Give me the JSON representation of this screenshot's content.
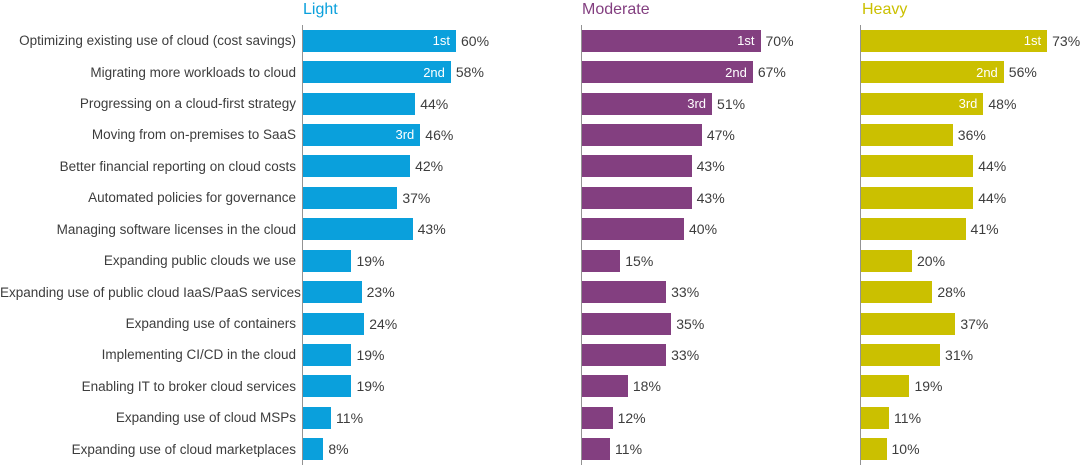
{
  "chart_data": {
    "type": "bar",
    "orientation": "horizontal",
    "title": "",
    "xlabel": "",
    "ylabel": "",
    "value_suffix": "%",
    "xlim": [
      0,
      80
    ],
    "grid": false,
    "legend_position": "column-headers-top",
    "axis_color": "#939393",
    "text_color": "#3d3d3d",
    "categories": [
      "Optimizing existing use of cloud (cost savings)",
      "Migrating more workloads to cloud",
      "Progressing on a cloud-first strategy",
      "Moving from on-premises to SaaS",
      "Better financial reporting on cloud costs",
      "Automated policies for governance",
      "Managing software licenses in the cloud",
      "Expanding public clouds we use",
      "Expanding use of public cloud IaaS/PaaS services",
      "Expanding use of containers",
      "Implementing CI/CD in the cloud",
      "Enabling IT to broker cloud services",
      "Expanding use of cloud MSPs",
      "Expanding use of cloud marketplaces"
    ],
    "series": [
      {
        "name": "Light",
        "color": "#0aa0dc",
        "values": [
          60,
          58,
          44,
          46,
          42,
          37,
          43,
          19,
          23,
          24,
          19,
          19,
          11,
          8
        ],
        "ranks": {
          "0": "1st",
          "1": "2nd",
          "3": "3rd"
        }
      },
      {
        "name": "Moderate",
        "color": "#833f80",
        "values": [
          70,
          67,
          51,
          47,
          43,
          43,
          40,
          15,
          33,
          35,
          33,
          18,
          12,
          11
        ],
        "ranks": {
          "0": "1st",
          "1": "2nd",
          "2": "3rd"
        }
      },
      {
        "name": "Heavy",
        "color": "#cbc000",
        "values": [
          73,
          56,
          48,
          36,
          44,
          44,
          41,
          20,
          28,
          37,
          31,
          19,
          11,
          10
        ],
        "ranks": {
          "0": "1st",
          "1": "2nd",
          "2": "3rd"
        }
      }
    ]
  }
}
